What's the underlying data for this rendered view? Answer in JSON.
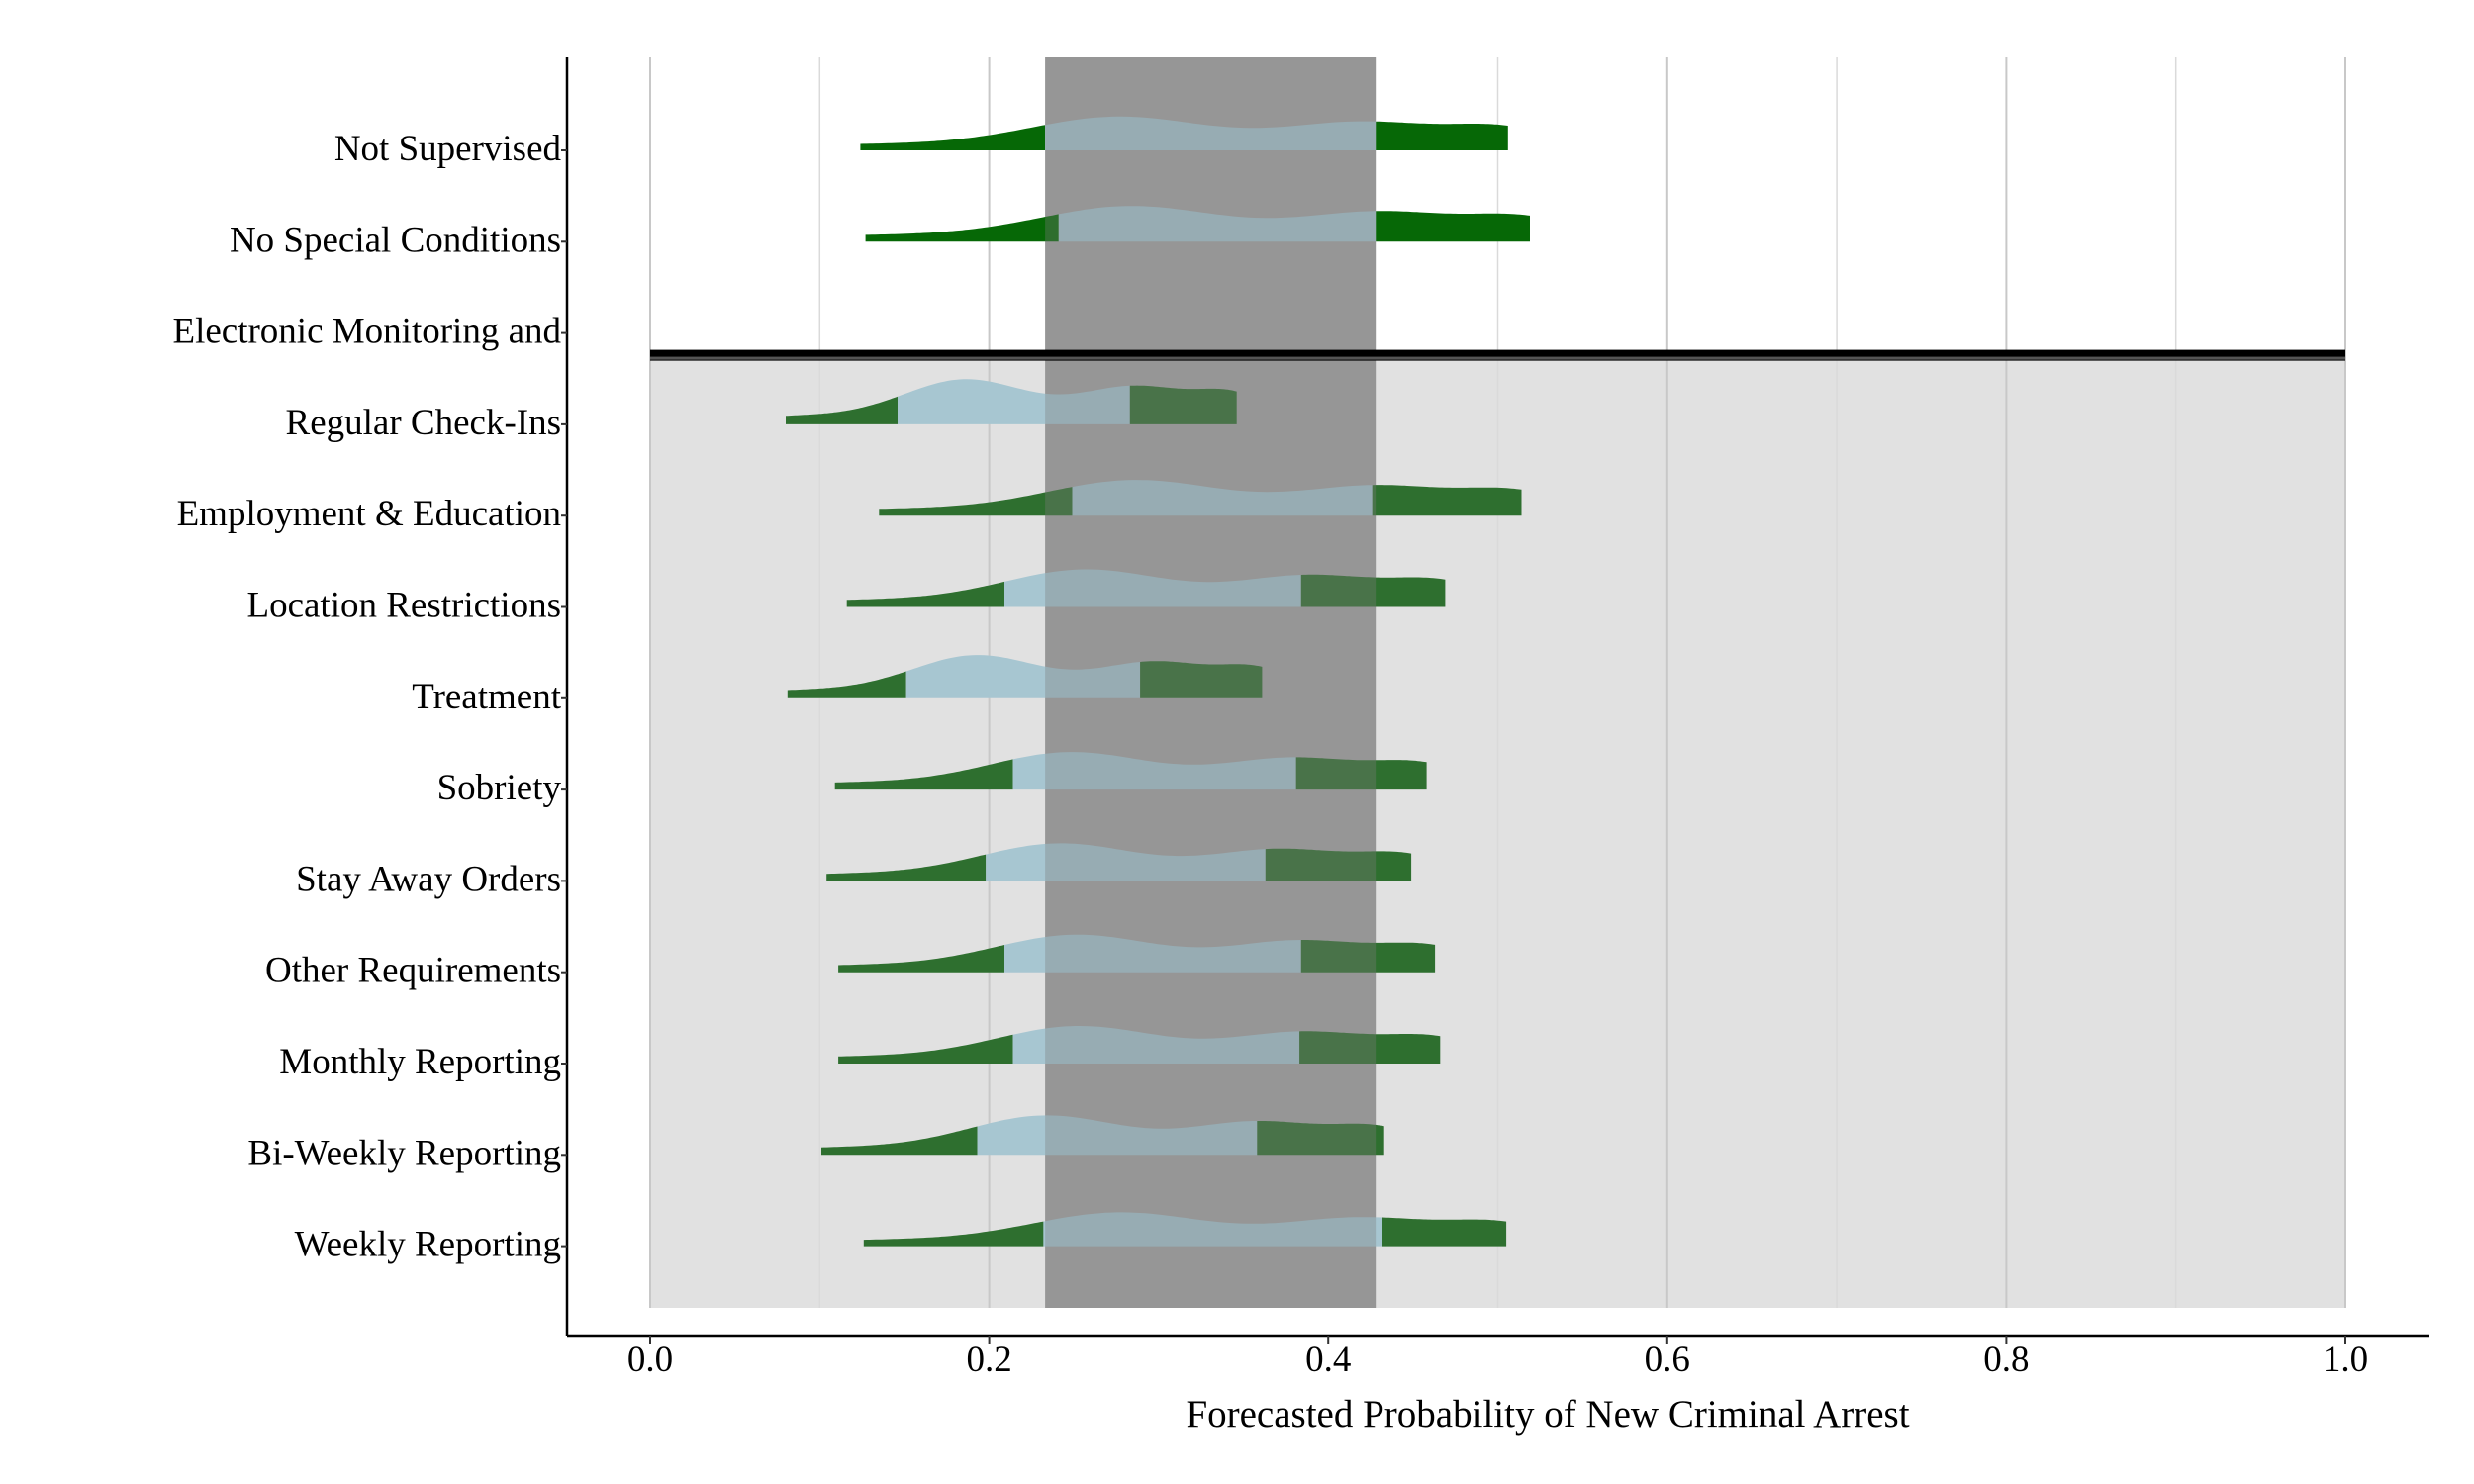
{
  "chart_data": {
    "type": "ridgeline",
    "xlabel": "Forecasted Probability of New Criminal Arrest",
    "xlim": [
      0.0,
      1.0
    ],
    "x_ticks": [
      "0.0",
      "0.2",
      "0.4",
      "0.6",
      "0.8",
      "1.0"
    ],
    "grid": "vertical",
    "central_band": [
      0.233,
      0.428
    ],
    "divider_after": "Electronic Monitoring and",
    "categories": [
      {
        "label": "Not Supervised",
        "min": 0.124,
        "max": 0.506,
        "q_low": 0.233,
        "q_high": 0.428,
        "height": 0.9,
        "shaded": false
      },
      {
        "label": "No Special Conditions",
        "min": 0.127,
        "max": 0.519,
        "q_low": 0.241,
        "q_high": 0.428,
        "height": 0.95,
        "shaded": false
      },
      {
        "label": "Electronic Monitoring and",
        "min": null,
        "max": null,
        "q_low": null,
        "q_high": null,
        "height": 0,
        "shaded": false
      },
      {
        "label": "Regular Check-Ins",
        "min": 0.08,
        "max": 0.346,
        "q_low": 0.146,
        "q_high": 0.283,
        "height": 1.2,
        "shaded": true
      },
      {
        "label": "Employment & Education",
        "min": 0.135,
        "max": 0.514,
        "q_low": 0.249,
        "q_high": 0.426,
        "height": 0.95,
        "shaded": true
      },
      {
        "label": "Location Restrictions",
        "min": 0.116,
        "max": 0.469,
        "q_low": 0.209,
        "q_high": 0.384,
        "height": 1.0,
        "shaded": true
      },
      {
        "label": "Treatment",
        "min": 0.081,
        "max": 0.361,
        "q_low": 0.151,
        "q_high": 0.289,
        "height": 1.15,
        "shaded": true
      },
      {
        "label": "Sobriety",
        "min": 0.109,
        "max": 0.458,
        "q_low": 0.214,
        "q_high": 0.381,
        "height": 1.0,
        "shaded": true
      },
      {
        "label": "Stay Away Orders",
        "min": 0.104,
        "max": 0.449,
        "q_low": 0.198,
        "q_high": 0.363,
        "height": 1.0,
        "shaded": true
      },
      {
        "label": "Other Requirements",
        "min": 0.111,
        "max": 0.463,
        "q_low": 0.209,
        "q_high": 0.384,
        "height": 1.0,
        "shaded": true
      },
      {
        "label": "Monthly Reporting",
        "min": 0.111,
        "max": 0.466,
        "q_low": 0.214,
        "q_high": 0.383,
        "height": 1.0,
        "shaded": true
      },
      {
        "label": "Bi-Weekly Reporting",
        "min": 0.101,
        "max": 0.433,
        "q_low": 0.193,
        "q_high": 0.358,
        "height": 1.05,
        "shaded": true
      },
      {
        "label": "Weekly Reporting",
        "min": 0.126,
        "max": 0.505,
        "q_low": 0.232,
        "q_high": 0.432,
        "height": 0.9,
        "shaded": true
      }
    ]
  }
}
